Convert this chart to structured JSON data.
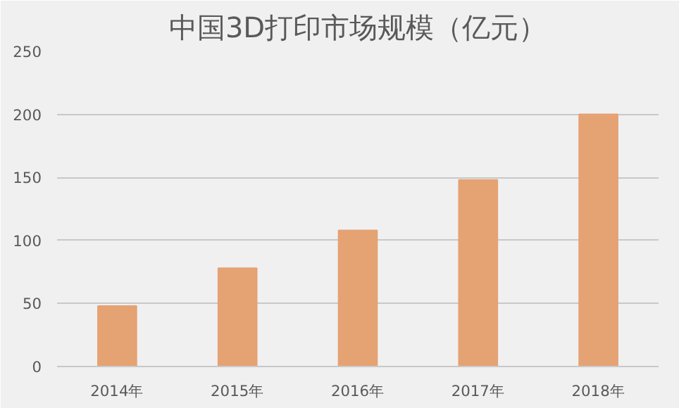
{
  "chart_data": {
    "type": "bar",
    "title": "中国3D打印市场规模（亿元）",
    "categories": [
      "2014年",
      "2015年",
      "2016年",
      "2017年",
      "2018年"
    ],
    "values": [
      48,
      78,
      108,
      148,
      200
    ],
    "color": "#e5a273",
    "ylim": [
      0,
      250
    ],
    "yticks": [
      0,
      50,
      100,
      150,
      200,
      250
    ],
    "grid": "y"
  }
}
